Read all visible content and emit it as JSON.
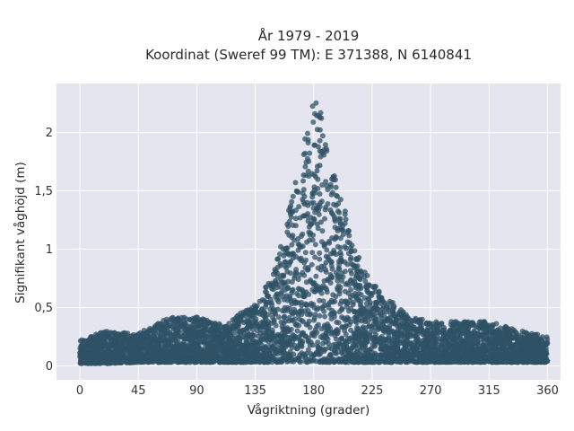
{
  "chart_data": {
    "type": "scatter",
    "title_line1": "År 1979 - 2019",
    "title_line2": "Koordinat (Sweref 99 TM): E 371388, N 6140841",
    "xlabel": "Vågriktning (grader)",
    "ylabel": "Signifikant våghöjd (m)",
    "xlim": [
      -18,
      370
    ],
    "ylim": [
      -0.12,
      2.42
    ],
    "x_ticks": [
      0,
      45,
      90,
      135,
      180,
      225,
      270,
      315,
      360
    ],
    "x_tick_labels": [
      "0",
      "45",
      "90",
      "135",
      "180",
      "225",
      "270",
      "315",
      "360"
    ],
    "y_ticks": [
      0,
      0.5,
      1,
      1.5,
      2
    ],
    "y_tick_labels": [
      "0",
      "0,5",
      "1",
      "1,5",
      "2"
    ],
    "grid": true,
    "marker_color": "#2f5266",
    "background_color": "#e5e5ef",
    "envelope": {
      "description": "upper envelope of wave height per direction",
      "x": [
        0,
        20,
        45,
        70,
        90,
        110,
        130,
        140,
        150,
        160,
        165,
        170,
        175,
        180,
        185,
        190,
        195,
        200,
        210,
        220,
        230,
        240,
        255,
        270,
        290,
        315,
        340,
        360
      ],
      "y_max": [
        0.22,
        0.3,
        0.28,
        0.42,
        0.42,
        0.35,
        0.5,
        0.6,
        0.85,
        1.3,
        1.55,
        1.75,
        2.05,
        2.3,
        2.2,
        1.85,
        1.65,
        1.55,
        1.05,
        0.8,
        0.65,
        0.55,
        0.42,
        0.38,
        0.38,
        0.38,
        0.3,
        0.25
      ],
      "y_min": [
        0.02,
        0.02,
        0.03,
        0.03,
        0.03,
        0.03,
        0.03,
        0.03,
        0.03,
        0.03,
        0.03,
        0.03,
        0.03,
        0.03,
        0.03,
        0.03,
        0.03,
        0.03,
        0.03,
        0.03,
        0.03,
        0.03,
        0.03,
        0.03,
        0.03,
        0.03,
        0.03,
        0.03
      ]
    }
  }
}
